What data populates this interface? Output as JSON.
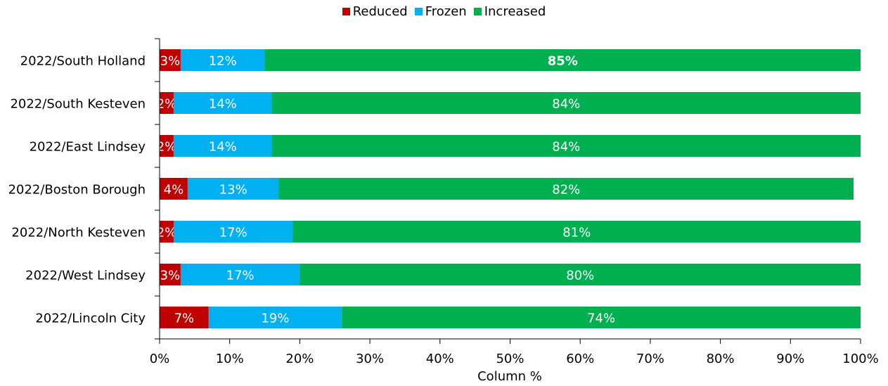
{
  "chart_data": {
    "type": "bar",
    "orientation": "horizontal",
    "stacked": true,
    "categories": [
      "2022/South Holland",
      "2022/South Kesteven",
      "2022/East Lindsey",
      "2022/Boston Borough",
      "2022/North Kesteven",
      "2022/West Lindsey",
      "2022/Lincoln City"
    ],
    "series": [
      {
        "name": "Reduced",
        "color": "#c00000",
        "values": [
          3,
          2,
          2,
          4,
          2,
          3,
          7
        ]
      },
      {
        "name": "Frozen",
        "color": "#00b0f0",
        "values": [
          12,
          14,
          14,
          13,
          17,
          17,
          19
        ]
      },
      {
        "name": "Increased",
        "color": "#00b050",
        "values": [
          85,
          84,
          84,
          82,
          81,
          80,
          74
        ]
      }
    ],
    "xlabel": "Column %",
    "ylabel": "",
    "xlim": [
      0,
      100
    ],
    "xticks": [
      "0%",
      "10%",
      "20%",
      "30%",
      "40%",
      "50%",
      "60%",
      "70%",
      "80%",
      "90%",
      "100%"
    ],
    "legend_position": "top-center",
    "grid": false
  }
}
